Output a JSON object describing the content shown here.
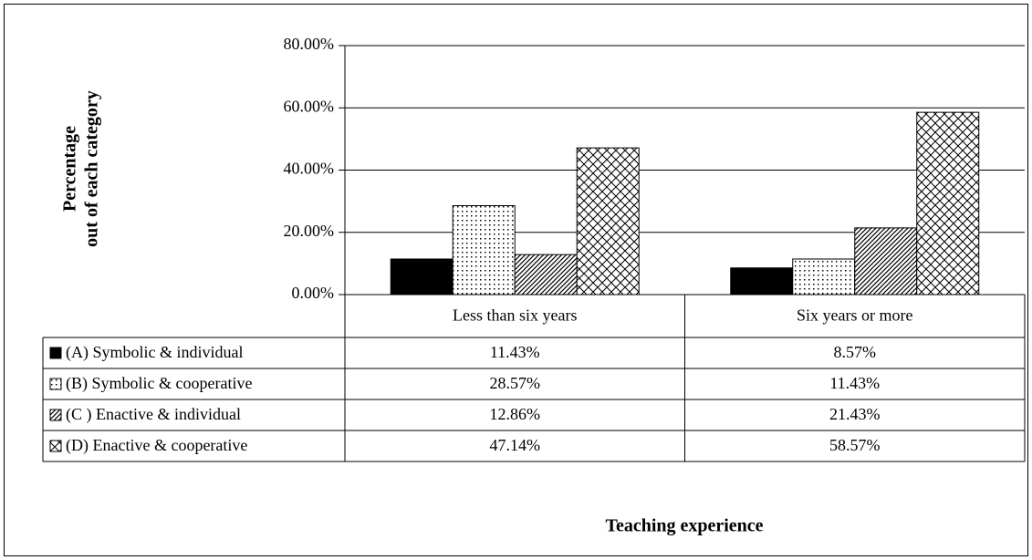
{
  "chart_data": {
    "type": "bar",
    "ylabel": [
      "Percentage",
      "out of each category"
    ],
    "xlabel": "Teaching experience",
    "categories": [
      "Less than six years",
      "Six years or more"
    ],
    "series": [
      {
        "name": "(A) Symbolic & individual",
        "color": "#000000",
        "pattern": "solid",
        "values": [
          11.43,
          8.57
        ],
        "value_labels": [
          "11.43%",
          "8.57%"
        ]
      },
      {
        "name": "(B) Symbolic & cooperative",
        "color": "#000000",
        "pattern": "dots",
        "values": [
          28.57,
          11.43
        ],
        "value_labels": [
          "28.57%",
          "11.43%"
        ]
      },
      {
        "name": "(C ) Enactive & individual",
        "color": "#000000",
        "pattern": "diagonal",
        "values": [
          12.86,
          21.43
        ],
        "value_labels": [
          "12.86%",
          "21.43%"
        ]
      },
      {
        "name": "(D) Enactive & cooperative",
        "color": "#000000",
        "pattern": "crosshatch",
        "values": [
          47.14,
          58.57
        ],
        "value_labels": [
          "47.14%",
          "58.57%"
        ]
      }
    ],
    "ylim": [
      0,
      80
    ],
    "yticks": [
      {
        "value": 0,
        "label": "0.00%"
      },
      {
        "value": 20,
        "label": "20.00%"
      },
      {
        "value": 40,
        "label": "40.00%"
      },
      {
        "value": 60,
        "label": "60.00%"
      },
      {
        "value": 80,
        "label": "80.00%"
      }
    ],
    "grid": true
  }
}
